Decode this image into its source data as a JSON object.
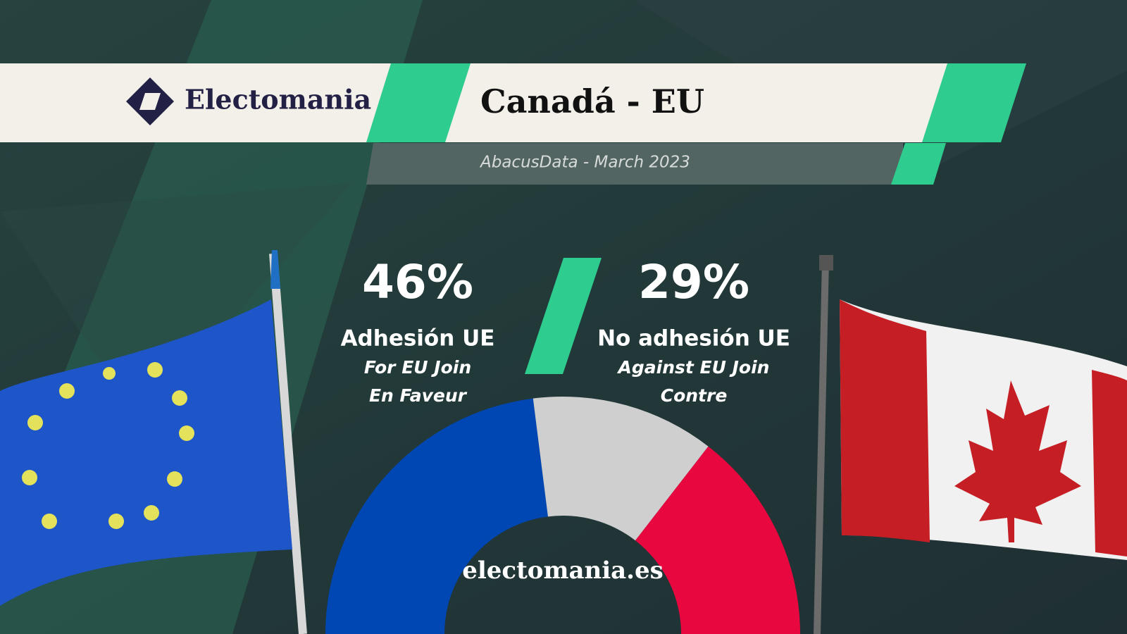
{
  "header": {
    "brand": "Electomania",
    "title": "Canadá - EU",
    "subtitle": "AbacusData - March 2023"
  },
  "chart_data": {
    "type": "pie",
    "categories": [
      "Adhesión UE",
      null,
      "No adhesión UE"
    ],
    "sublabels": [
      [
        "For EU Join",
        "En Faveur"
      ],
      null,
      [
        "Against EU Join",
        "Contre"
      ]
    ],
    "values": [
      46,
      25,
      29
    ],
    "value_labels": [
      "46%",
      null,
      "29%"
    ],
    "colors": [
      "#0047b3",
      "#cfcfcf",
      "#e8073f"
    ]
  },
  "footer": {
    "site": "electomania.es"
  }
}
